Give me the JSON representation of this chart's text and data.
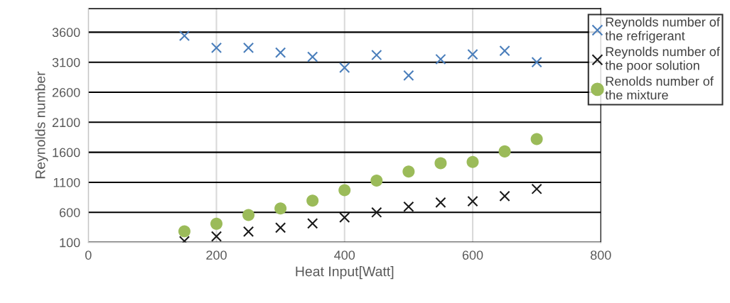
{
  "chart_data": {
    "type": "scatter",
    "xlabel": "Heat Input[Watt]",
    "ylabel": "Reynolds number",
    "x": [
      150,
      200,
      250,
      300,
      350,
      400,
      450,
      500,
      550,
      600,
      650,
      700
    ],
    "series": [
      {
        "name": "Reynolds number of the refrigerant",
        "color": "#4a7ebb",
        "marker": "cross",
        "values": [
          3540,
          3340,
          3340,
          3260,
          3190,
          3010,
          3220,
          2880,
          3150,
          3230,
          3290,
          3100
        ]
      },
      {
        "name": "Reynolds number of the poor solution",
        "color": "#1a1a1a",
        "marker": "cross",
        "values": [
          120,
          200,
          280,
          345,
          415,
          515,
          600,
          695,
          765,
          785,
          870,
          990
        ]
      },
      {
        "name": "Renolds number of the mixture",
        "color": "#9bbb59",
        "marker": "circle",
        "values": [
          285,
          410,
          555,
          665,
          795,
          970,
          1130,
          1280,
          1420,
          1440,
          1615,
          1820
        ]
      }
    ],
    "xlim": [
      0,
      800
    ],
    "xticks": [
      0,
      200,
      400,
      600,
      800
    ],
    "ylim": [
      100,
      4000
    ],
    "yticks": [
      100,
      600,
      1100,
      1600,
      2100,
      2600,
      3100,
      3600
    ],
    "grid": true,
    "legend": "top right"
  }
}
